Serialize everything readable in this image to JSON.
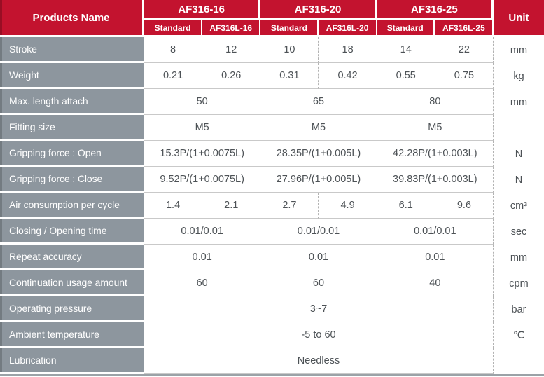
{
  "table": {
    "colors": {
      "header_red": "#c3132f",
      "label_gray": "#8d969e",
      "value_text": "#4d5256"
    },
    "header": {
      "products_name": "Products Name",
      "unit_label": "Unit",
      "groups": [
        {
          "label": "AF316-16",
          "subs": [
            "Standard",
            "AF316L-16"
          ]
        },
        {
          "label": "AF316-20",
          "subs": [
            "Standard",
            "AF316L-20"
          ]
        },
        {
          "label": "AF316-25",
          "subs": [
            "Standard",
            "AF316L-25"
          ]
        }
      ]
    },
    "rows": [
      {
        "label": "Stroke",
        "values": [
          "8",
          "12",
          "10",
          "18",
          "14",
          "22"
        ],
        "unit": "mm"
      },
      {
        "label": "Weight",
        "values": [
          "0.21",
          "0.26",
          "0.31",
          "0.42",
          "0.55",
          "0.75"
        ],
        "unit": "kg"
      },
      {
        "label": "Max. length attach",
        "values": [
          "50",
          "65",
          "80"
        ],
        "unit": "mm"
      },
      {
        "label": "Fitting size",
        "values": [
          "M5",
          "M5",
          "M5"
        ],
        "unit": ""
      },
      {
        "label": "Gripping force : Open",
        "values": [
          "15.3P/(1+0.0075L)",
          "28.35P/(1+0.005L)",
          "42.28P/(1+0.003L)"
        ],
        "unit": "N"
      },
      {
        "label": "Gripping force : Close",
        "values": [
          "9.52P/(1+0.0075L)",
          "27.96P/(1+0.005L)",
          "39.83P/(1+0.003L)"
        ],
        "unit": "N"
      },
      {
        "label": "Air consumption per cycle",
        "values": [
          "1.4",
          "2.1",
          "2.7",
          "4.9",
          "6.1",
          "9.6"
        ],
        "unit": "cm³"
      },
      {
        "label": "Closing / Opening time",
        "values": [
          "0.01/0.01",
          "0.01/0.01",
          "0.01/0.01"
        ],
        "unit": "sec"
      },
      {
        "label": "Repeat accuracy",
        "values": [
          "0.01",
          "0.01",
          "0.01"
        ],
        "unit": "mm"
      },
      {
        "label": "Continuation usage amount",
        "values": [
          "60",
          "60",
          "40"
        ],
        "unit": "cpm"
      },
      {
        "label": "Operating pressure",
        "values": [
          "3~7"
        ],
        "unit": "bar"
      },
      {
        "label": "Ambient temperature",
        "values": [
          "-5 to 60"
        ],
        "unit": "℃"
      },
      {
        "label": "Lubrication",
        "values": [
          "Needless"
        ],
        "unit": ""
      }
    ]
  }
}
